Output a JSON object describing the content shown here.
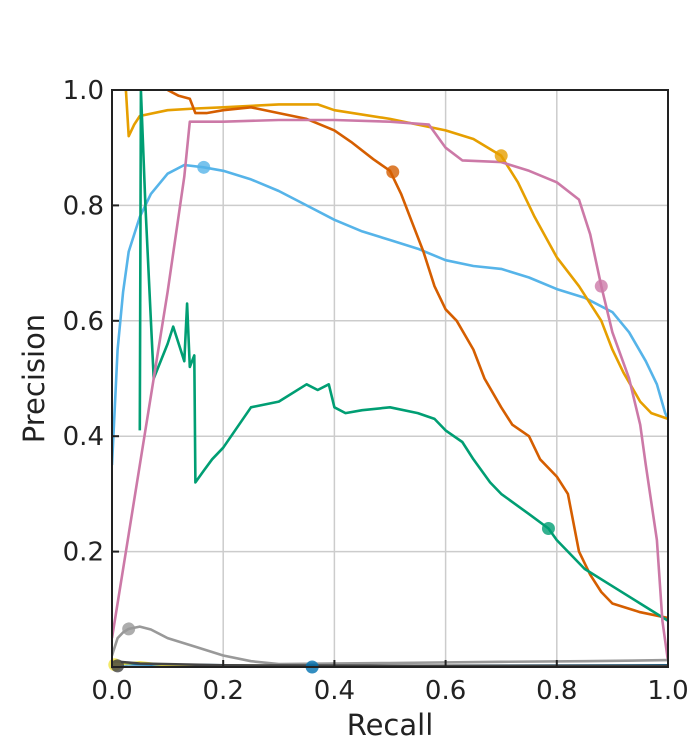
{
  "chart_data": {
    "type": "line",
    "title": "",
    "xlabel": "Recall",
    "ylabel": "Precision",
    "xlim": [
      0,
      1
    ],
    "ylim": [
      0,
      1
    ],
    "x_ticks": [
      0.0,
      0.2,
      0.4,
      0.6,
      0.8,
      1.0
    ],
    "y_ticks": [
      0.2,
      0.4,
      0.6,
      0.8,
      1.0
    ],
    "x_tick_labels": [
      "0.0",
      "0.2",
      "0.4",
      "0.6",
      "0.8",
      "1.0"
    ],
    "y_tick_labels": [
      "0.2",
      "0.4",
      "0.6",
      "0.8",
      "1.0"
    ],
    "grid": true,
    "series": [
      {
        "color": "#56B4E9",
        "marker": [
          0.165,
          0.866
        ],
        "points": [
          [
            0.0,
            0.35
          ],
          [
            0.005,
            0.45
          ],
          [
            0.01,
            0.55
          ],
          [
            0.02,
            0.65
          ],
          [
            0.03,
            0.72
          ],
          [
            0.05,
            0.78
          ],
          [
            0.07,
            0.82
          ],
          [
            0.1,
            0.855
          ],
          [
            0.13,
            0.87
          ],
          [
            0.165,
            0.866
          ],
          [
            0.2,
            0.86
          ],
          [
            0.25,
            0.845
          ],
          [
            0.3,
            0.825
          ],
          [
            0.35,
            0.8
          ],
          [
            0.4,
            0.775
          ],
          [
            0.45,
            0.755
          ],
          [
            0.5,
            0.74
          ],
          [
            0.55,
            0.725
          ],
          [
            0.6,
            0.705
          ],
          [
            0.65,
            0.695
          ],
          [
            0.7,
            0.69
          ],
          [
            0.75,
            0.675
          ],
          [
            0.8,
            0.655
          ],
          [
            0.85,
            0.64
          ],
          [
            0.9,
            0.615
          ],
          [
            0.93,
            0.58
          ],
          [
            0.96,
            0.53
          ],
          [
            0.98,
            0.49
          ],
          [
            0.995,
            0.44
          ],
          [
            1.0,
            0.43
          ]
        ]
      },
      {
        "color": "#E69F00",
        "marker": [
          0.7,
          0.886
        ],
        "points": [
          [
            0.025,
            1.0
          ],
          [
            0.03,
            0.92
          ],
          [
            0.04,
            0.94
          ],
          [
            0.05,
            0.955
          ],
          [
            0.1,
            0.965
          ],
          [
            0.15,
            0.968
          ],
          [
            0.2,
            0.97
          ],
          [
            0.3,
            0.975
          ],
          [
            0.37,
            0.975
          ],
          [
            0.4,
            0.965
          ],
          [
            0.5,
            0.95
          ],
          [
            0.55,
            0.94
          ],
          [
            0.6,
            0.93
          ],
          [
            0.65,
            0.915
          ],
          [
            0.7,
            0.886
          ],
          [
            0.73,
            0.84
          ],
          [
            0.76,
            0.78
          ],
          [
            0.8,
            0.71
          ],
          [
            0.84,
            0.66
          ],
          [
            0.88,
            0.6
          ],
          [
            0.9,
            0.55
          ],
          [
            0.92,
            0.51
          ],
          [
            0.95,
            0.46
          ],
          [
            0.97,
            0.44
          ],
          [
            1.0,
            0.43
          ]
        ]
      },
      {
        "color": "#D55E00",
        "marker": [
          0.505,
          0.858
        ],
        "points": [
          [
            0.1,
            1.0
          ],
          [
            0.12,
            0.99
          ],
          [
            0.14,
            0.985
          ],
          [
            0.15,
            0.96
          ],
          [
            0.17,
            0.96
          ],
          [
            0.2,
            0.965
          ],
          [
            0.25,
            0.97
          ],
          [
            0.3,
            0.96
          ],
          [
            0.35,
            0.95
          ],
          [
            0.4,
            0.93
          ],
          [
            0.43,
            0.91
          ],
          [
            0.47,
            0.88
          ],
          [
            0.5,
            0.86
          ],
          [
            0.52,
            0.82
          ],
          [
            0.54,
            0.77
          ],
          [
            0.56,
            0.72
          ],
          [
            0.58,
            0.66
          ],
          [
            0.6,
            0.62
          ],
          [
            0.62,
            0.6
          ],
          [
            0.65,
            0.55
          ],
          [
            0.67,
            0.5
          ],
          [
            0.7,
            0.45
          ],
          [
            0.72,
            0.42
          ],
          [
            0.75,
            0.4
          ],
          [
            0.77,
            0.36
          ],
          [
            0.8,
            0.33
          ],
          [
            0.82,
            0.3
          ],
          [
            0.84,
            0.2
          ],
          [
            0.86,
            0.16
          ],
          [
            0.88,
            0.13
          ],
          [
            0.9,
            0.11
          ],
          [
            0.95,
            0.095
          ],
          [
            1.0,
            0.085
          ]
        ]
      },
      {
        "color": "#009E73",
        "marker": [
          0.785,
          0.24
        ],
        "points": [
          [
            0.05,
            0.41
          ],
          [
            0.052,
            1.0
          ],
          [
            0.06,
            0.8
          ],
          [
            0.07,
            0.6
          ],
          [
            0.075,
            0.5
          ],
          [
            0.1,
            0.56
          ],
          [
            0.11,
            0.59
          ],
          [
            0.13,
            0.53
          ],
          [
            0.135,
            0.63
          ],
          [
            0.14,
            0.52
          ],
          [
            0.148,
            0.54
          ],
          [
            0.15,
            0.32
          ],
          [
            0.165,
            0.34
          ],
          [
            0.18,
            0.36
          ],
          [
            0.2,
            0.38
          ],
          [
            0.25,
            0.45
          ],
          [
            0.3,
            0.46
          ],
          [
            0.35,
            0.49
          ],
          [
            0.37,
            0.48
          ],
          [
            0.39,
            0.49
          ],
          [
            0.4,
            0.45
          ],
          [
            0.42,
            0.44
          ],
          [
            0.45,
            0.445
          ],
          [
            0.5,
            0.45
          ],
          [
            0.55,
            0.44
          ],
          [
            0.58,
            0.43
          ],
          [
            0.6,
            0.41
          ],
          [
            0.63,
            0.39
          ],
          [
            0.65,
            0.36
          ],
          [
            0.68,
            0.32
          ],
          [
            0.7,
            0.3
          ],
          [
            0.75,
            0.265
          ],
          [
            0.785,
            0.24
          ],
          [
            0.8,
            0.22
          ],
          [
            0.85,
            0.17
          ],
          [
            0.9,
            0.14
          ],
          [
            0.95,
            0.11
          ],
          [
            1.0,
            0.08
          ]
        ]
      },
      {
        "color": "#CC79A7",
        "marker": [
          0.88,
          0.66
        ],
        "points": [
          [
            0.0,
            0.05
          ],
          [
            0.05,
            0.35
          ],
          [
            0.1,
            0.65
          ],
          [
            0.13,
            0.85
          ],
          [
            0.14,
            0.945
          ],
          [
            0.2,
            0.945
          ],
          [
            0.3,
            0.948
          ],
          [
            0.4,
            0.948
          ],
          [
            0.5,
            0.945
          ],
          [
            0.57,
            0.94
          ],
          [
            0.6,
            0.9
          ],
          [
            0.63,
            0.878
          ],
          [
            0.7,
            0.875
          ],
          [
            0.75,
            0.86
          ],
          [
            0.8,
            0.84
          ],
          [
            0.84,
            0.81
          ],
          [
            0.86,
            0.75
          ],
          [
            0.88,
            0.66
          ],
          [
            0.9,
            0.58
          ],
          [
            0.93,
            0.5
          ],
          [
            0.95,
            0.42
          ],
          [
            0.96,
            0.35
          ],
          [
            0.98,
            0.22
          ],
          [
            0.99,
            0.08
          ],
          [
            1.0,
            0.01
          ]
        ]
      },
      {
        "color": "#999999",
        "marker": [
          0.03,
          0.066
        ],
        "points": [
          [
            0.0,
            0.02
          ],
          [
            0.01,
            0.05
          ],
          [
            0.02,
            0.06
          ],
          [
            0.03,
            0.066
          ],
          [
            0.05,
            0.07
          ],
          [
            0.07,
            0.065
          ],
          [
            0.1,
            0.05
          ],
          [
            0.15,
            0.035
          ],
          [
            0.2,
            0.02
          ],
          [
            0.25,
            0.01
          ],
          [
            0.3,
            0.005
          ],
          [
            0.5,
            0.007
          ],
          [
            0.7,
            0.009
          ],
          [
            0.85,
            0.01
          ],
          [
            1.0,
            0.012
          ]
        ]
      },
      {
        "color": "#0072B2",
        "marker": [
          0.36,
          0.0
        ],
        "points": [
          [
            0.0,
            0.005
          ],
          [
            0.2,
            0.003
          ],
          [
            0.36,
            0.0
          ],
          [
            0.6,
            0.002
          ],
          [
            1.0,
            0.003
          ]
        ]
      },
      {
        "color": "#F0E442",
        "marker": [
          0.005,
          0.004
        ],
        "points": [
          [
            0.0,
            0.004
          ],
          [
            0.05,
            0.008
          ],
          [
            0.1,
            0.003
          ],
          [
            0.3,
            0.002
          ],
          [
            1.0,
            0.002
          ]
        ]
      },
      {
        "color": "#444444",
        "marker": [
          0.01,
          0.002
        ],
        "points": [
          [
            0.0,
            0.01
          ],
          [
            0.05,
            0.006
          ],
          [
            0.2,
            0.003
          ],
          [
            0.5,
            0.002
          ],
          [
            1.0,
            0.002
          ]
        ]
      }
    ]
  }
}
